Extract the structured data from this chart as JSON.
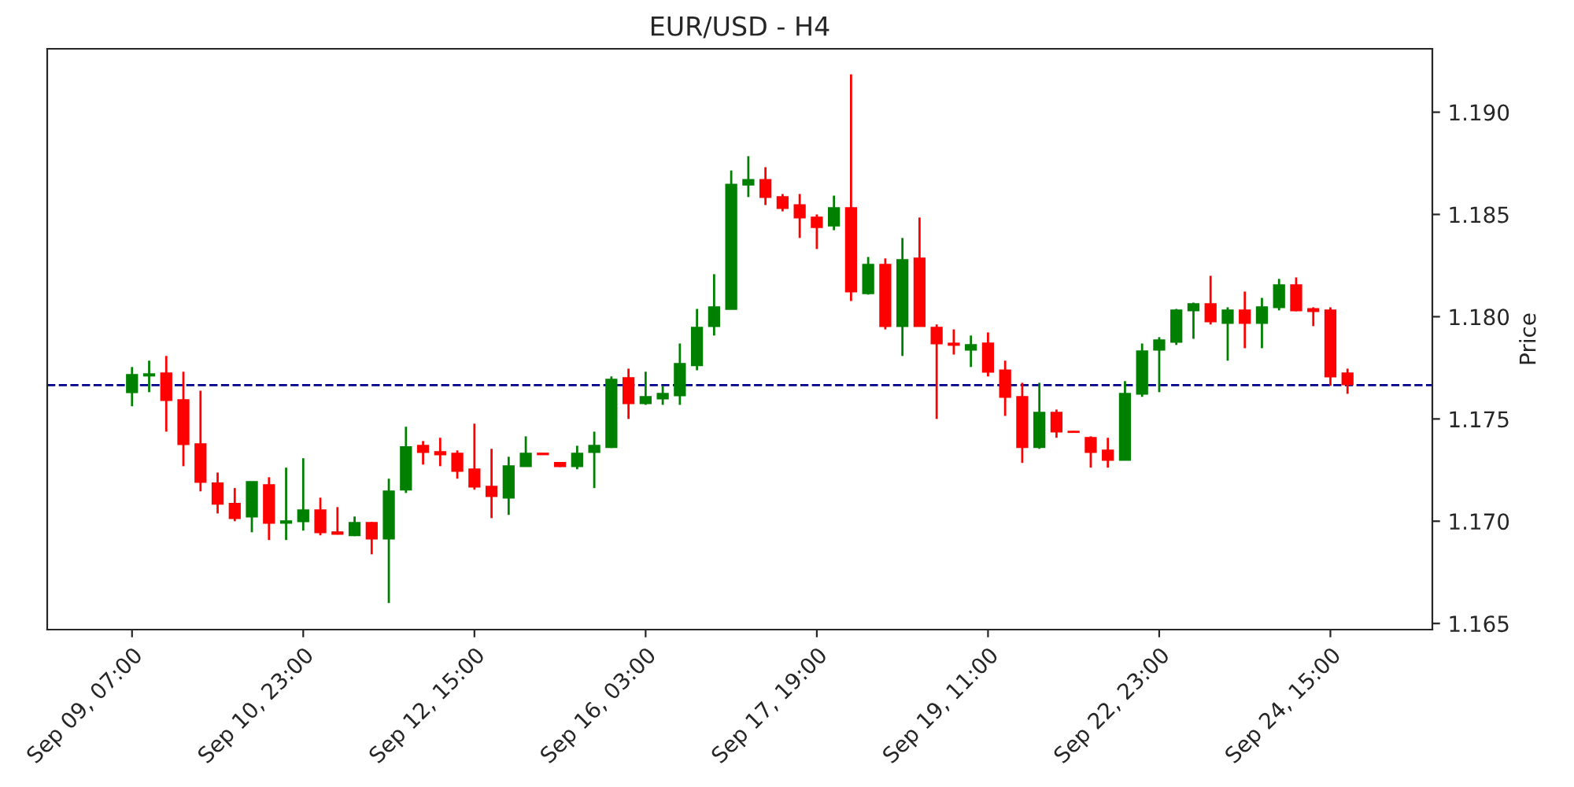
{
  "chart_data": {
    "type": "candlestick",
    "title": "EUR/USD - H4",
    "ylabel": "Price",
    "categories": [
      "Sep 09, 07:00",
      null,
      null,
      null,
      null,
      null,
      null,
      null,
      null,
      null,
      "Sep 10, 23:00",
      null,
      null,
      null,
      null,
      null,
      null,
      null,
      null,
      null,
      "Sep 12, 15:00",
      null,
      null,
      null,
      null,
      null,
      null,
      null,
      null,
      null,
      "Sep 16, 03:00",
      null,
      null,
      null,
      null,
      null,
      null,
      null,
      null,
      null,
      "Sep 17, 19:00",
      null,
      null,
      null,
      null,
      null,
      null,
      null,
      null,
      null,
      "Sep 19, 11:00",
      null,
      null,
      null,
      null,
      null,
      null,
      null,
      null,
      null,
      "Sep 22, 23:00",
      null,
      null,
      null,
      null,
      null,
      null,
      null,
      null,
      null,
      "Sep 24, 15:00",
      null
    ],
    "ohlc": [
      [
        1.17631,
        1.17754,
        1.17562,
        1.17715
      ],
      [
        1.17712,
        1.17785,
        1.17631,
        1.17719
      ],
      [
        1.17723,
        1.17808,
        1.17438,
        1.17592
      ],
      [
        1.17592,
        1.17731,
        1.17269,
        1.17377
      ],
      [
        1.17377,
        1.17638,
        1.17146,
        1.17192
      ],
      [
        1.17185,
        1.17238,
        1.17038,
        1.17085
      ],
      [
        1.17085,
        1.17162,
        1.17,
        1.17015
      ],
      [
        1.17023,
        1.17192,
        1.16946,
        1.17192
      ],
      [
        1.17177,
        1.17215,
        1.16908,
        1.16992
      ],
      [
        1.16992,
        1.17262,
        1.16908,
        1.17
      ],
      [
        1.17,
        1.17308,
        1.16954,
        1.17054
      ],
      [
        1.17054,
        1.17115,
        1.16931,
        1.16946
      ],
      [
        1.16946,
        1.17069,
        1.16935,
        1.16938
      ],
      [
        1.16931,
        1.17023,
        1.16927,
        1.16992
      ],
      [
        1.16992,
        1.16996,
        1.16838,
        1.16915
      ],
      [
        1.16915,
        1.17208,
        1.166,
        1.17146
      ],
      [
        1.17154,
        1.17462,
        1.17138,
        1.17362
      ],
      [
        1.17369,
        1.17392,
        1.17277,
        1.17338
      ],
      [
        1.17338,
        1.17408,
        1.17269,
        1.17327
      ],
      [
        1.17331,
        1.17346,
        1.17208,
        1.17246
      ],
      [
        1.17254,
        1.17477,
        1.17154,
        1.17169
      ],
      [
        1.17169,
        1.17354,
        1.17015,
        1.17123
      ],
      [
        1.17115,
        1.17315,
        1.17031,
        1.17269
      ],
      [
        1.17269,
        1.17415,
        1.17269,
        1.17331
      ],
      [
        1.17331,
        1.17331,
        1.17327,
        1.17327
      ],
      [
        1.17285,
        1.17288,
        1.17265,
        1.17269
      ],
      [
        1.17269,
        1.17369,
        1.17254,
        1.17331
      ],
      [
        1.17338,
        1.17438,
        1.17162,
        1.17369
      ],
      [
        1.17362,
        1.17708,
        1.17358,
        1.17692
      ],
      [
        1.177,
        1.17746,
        1.175,
        1.17577
      ],
      [
        1.17577,
        1.17731,
        1.17569,
        1.17608
      ],
      [
        1.176,
        1.17662,
        1.17569,
        1.17623
      ],
      [
        1.17615,
        1.17869,
        1.17569,
        1.17769
      ],
      [
        1.17762,
        1.18038,
        1.17738,
        1.17946
      ],
      [
        1.17954,
        1.18208,
        1.17908,
        1.18046
      ],
      [
        1.18038,
        1.18715,
        1.18038,
        1.18646
      ],
      [
        1.18646,
        1.18785,
        1.18585,
        1.18669
      ],
      [
        1.18669,
        1.18731,
        1.18546,
        1.18585
      ],
      [
        1.18585,
        1.186,
        1.18515,
        1.18531
      ],
      [
        1.18546,
        1.186,
        1.18385,
        1.18485
      ],
      [
        1.18485,
        1.185,
        1.18331,
        1.18438
      ],
      [
        1.18446,
        1.18592,
        1.18423,
        1.18531
      ],
      [
        1.18531,
        1.19185,
        1.18077,
        1.18123
      ],
      [
        1.18115,
        1.18292,
        1.18108,
        1.18254
      ],
      [
        1.18254,
        1.18285,
        1.17938,
        1.17954
      ],
      [
        1.17954,
        1.18385,
        1.17808,
        1.18277
      ],
      [
        1.18285,
        1.18485,
        1.17954,
        1.17954
      ],
      [
        1.17946,
        1.17962,
        1.175,
        1.17869
      ],
      [
        1.17869,
        1.17938,
        1.17815,
        1.17862
      ],
      [
        1.17838,
        1.17908,
        1.17754,
        1.17862
      ],
      [
        1.17869,
        1.17923,
        1.17708,
        1.17731
      ],
      [
        1.17738,
        1.17785,
        1.17515,
        1.17608
      ],
      [
        1.17608,
        1.17677,
        1.17285,
        1.17362
      ],
      [
        1.17362,
        1.17677,
        1.17354,
        1.17531
      ],
      [
        1.17531,
        1.17546,
        1.17408,
        1.17438
      ],
      [
        1.17438,
        1.17441,
        1.17434,
        1.17436
      ],
      [
        1.17408,
        1.17415,
        1.17262,
        1.17338
      ],
      [
        1.17346,
        1.17408,
        1.17262,
        1.173
      ],
      [
        1.173,
        1.17685,
        1.173,
        1.17623
      ],
      [
        1.17623,
        1.17869,
        1.17608,
        1.17831
      ],
      [
        1.17838,
        1.179,
        1.17631,
        1.17885
      ],
      [
        1.17877,
        1.18038,
        1.17862,
        1.18031
      ],
      [
        1.18031,
        1.18069,
        1.17892,
        1.18062
      ],
      [
        1.18062,
        1.182,
        1.17962,
        1.17977
      ],
      [
        1.17969,
        1.18046,
        1.17785,
        1.18031
      ],
      [
        1.18031,
        1.18123,
        1.17846,
        1.17969
      ],
      [
        1.17969,
        1.18092,
        1.17846,
        1.18046
      ],
      [
        1.18046,
        1.18185,
        1.18031,
        1.18154
      ],
      [
        1.18154,
        1.18192,
        1.18027,
        1.18031
      ],
      [
        1.18038,
        1.18046,
        1.17954,
        1.18027
      ],
      [
        1.18031,
        1.18046,
        1.17662,
        1.17708
      ],
      [
        1.17723,
        1.17746,
        1.17623,
        1.17669
      ]
    ],
    "colors": [
      "#008000",
      "#008000",
      "#ff0000",
      "#ff0000",
      "#ff0000",
      "#ff0000",
      "#ff0000",
      "#008000",
      "#ff0000",
      "#008000",
      "#008000",
      "#ff0000",
      "#ff0000",
      "#008000",
      "#ff0000",
      "#008000",
      "#008000",
      "#ff0000",
      "#ff0000",
      "#ff0000",
      "#ff0000",
      "#ff0000",
      "#008000",
      "#008000",
      "#ff0000",
      "#ff0000",
      "#008000",
      "#008000",
      "#008000",
      "#ff0000",
      "#008000",
      "#008000",
      "#008000",
      "#008000",
      "#008000",
      "#008000",
      "#008000",
      "#ff0000",
      "#ff0000",
      "#ff0000",
      "#ff0000",
      "#008000",
      "#ff0000",
      "#008000",
      "#ff0000",
      "#008000",
      "#ff0000",
      "#ff0000",
      "#ff0000",
      "#008000",
      "#ff0000",
      "#ff0000",
      "#ff0000",
      "#008000",
      "#ff0000",
      "#ff0000",
      "#ff0000",
      "#ff0000",
      "#008000",
      "#008000",
      "#008000",
      "#008000",
      "#008000",
      "#ff0000",
      "#008000",
      "#ff0000",
      "#008000",
      "#008000",
      "#ff0000",
      "#ff0000",
      "#ff0000",
      "#ff0000"
    ],
    "ylim": [
      1.1647,
      1.1931
    ],
    "yticks": [
      {
        "value": 1.165,
        "label": "1.165"
      },
      {
        "value": 1.17,
        "label": "1.170"
      },
      {
        "value": 1.175,
        "label": "1.175"
      },
      {
        "value": 1.18,
        "label": "1.180"
      },
      {
        "value": 1.185,
        "label": "1.185"
      },
      {
        "value": 1.19,
        "label": "1.190"
      }
    ],
    "ref_lines": [
      {
        "axis": "y",
        "value": 1.17665,
        "color": "#00008b",
        "line_style": "dashed"
      }
    ],
    "grid": false,
    "legend": false
  }
}
